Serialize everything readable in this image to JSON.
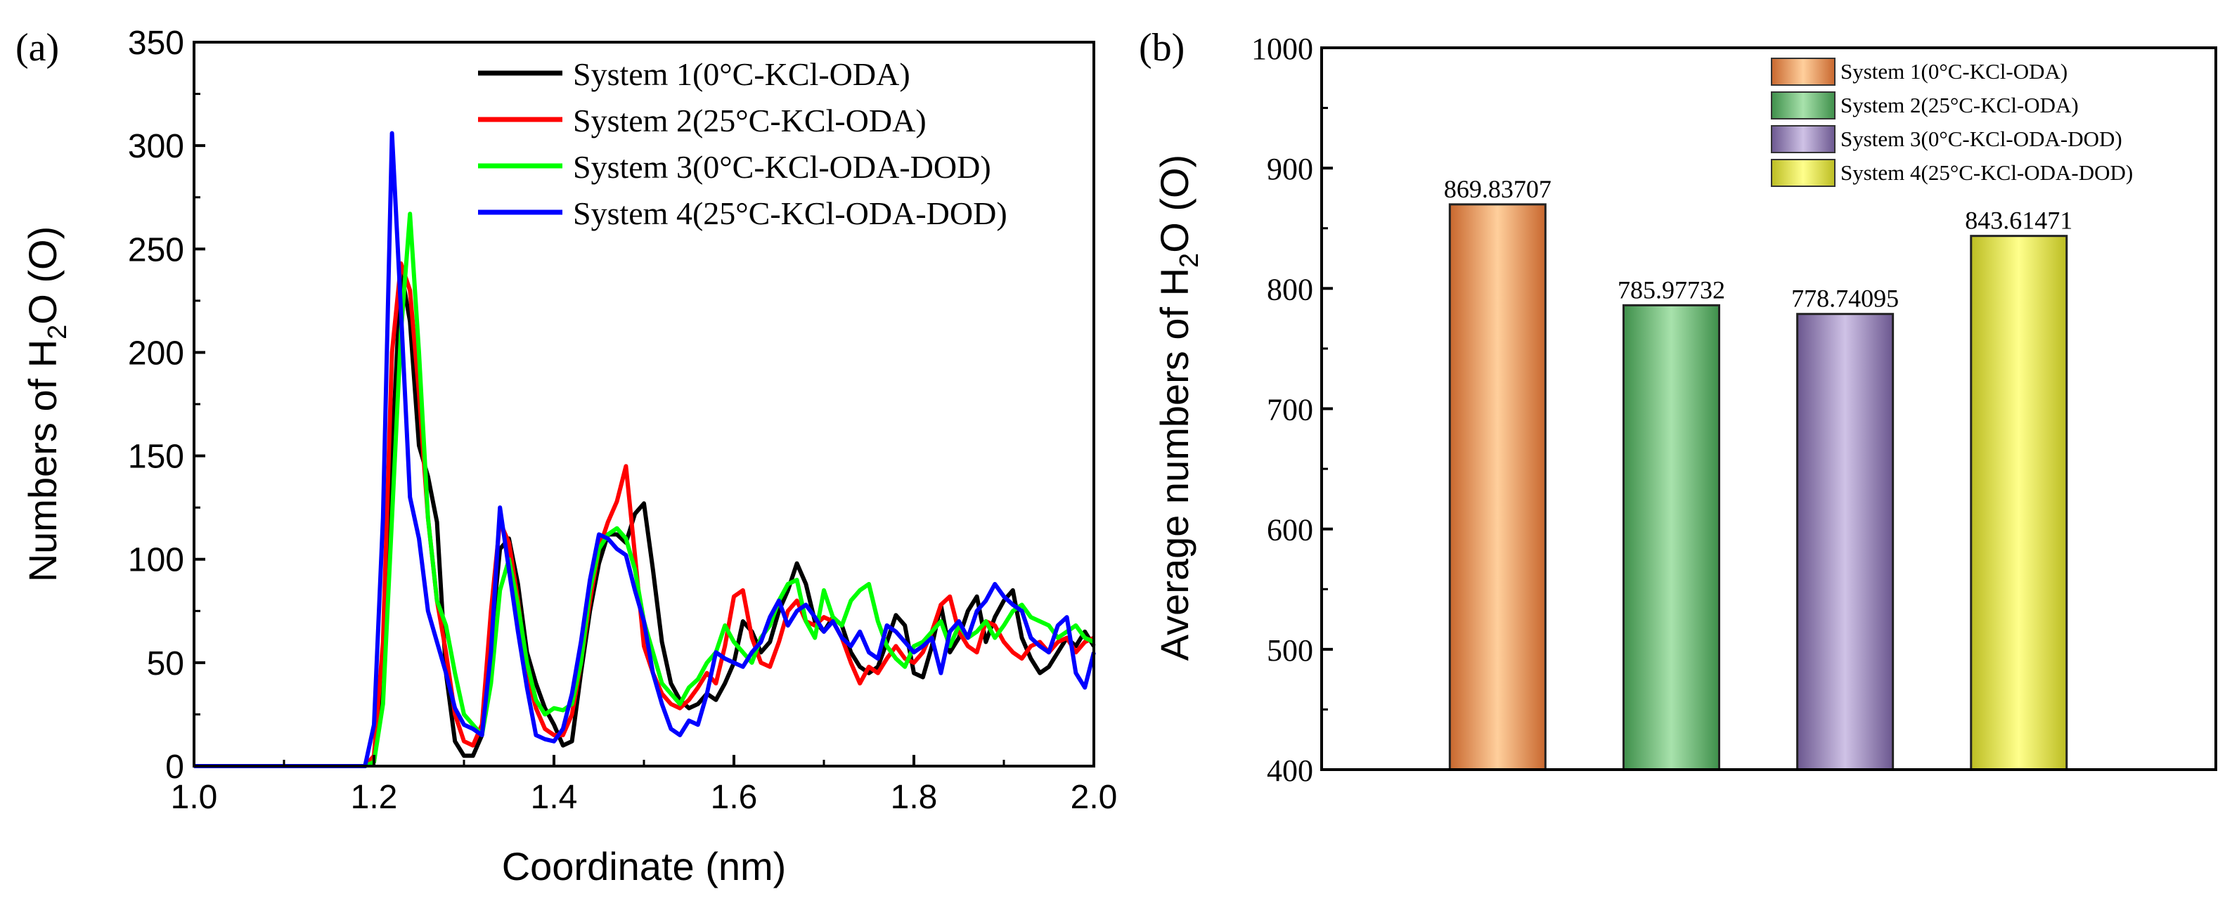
{
  "chart_data": [
    {
      "panel_label": "(a)",
      "type": "line",
      "xlabel": "Coordinate (nm)",
      "ylabel_main": "Numbers of H",
      "ylabel_sub": "2",
      "ylabel_end": "O (O)",
      "xlim": [
        1.0,
        2.0
      ],
      "ylim": [
        0,
        350
      ],
      "xticks": [
        1.0,
        1.2,
        1.4,
        1.6,
        1.8,
        2.0
      ],
      "xtick_labels": [
        "1.0",
        "1.2",
        "1.4",
        "1.6",
        "1.8",
        "2.0"
      ],
      "yticks": [
        0,
        50,
        100,
        150,
        200,
        250,
        300,
        350
      ],
      "ytick_labels": [
        "0",
        "50",
        "100",
        "150",
        "200",
        "250",
        "300",
        "350"
      ],
      "legend_position": "top-right",
      "series": [
        {
          "name": "System 1(0°C-KCl-ODA)",
          "color": "#000000",
          "x": [
            1.0,
            1.19,
            1.2,
            1.21,
            1.22,
            1.23,
            1.24,
            1.25,
            1.26,
            1.27,
            1.28,
            1.29,
            1.3,
            1.31,
            1.32,
            1.33,
            1.34,
            1.35,
            1.36,
            1.37,
            1.38,
            1.39,
            1.4,
            1.41,
            1.42,
            1.43,
            1.44,
            1.45,
            1.46,
            1.47,
            1.48,
            1.49,
            1.5,
            1.51,
            1.52,
            1.53,
            1.54,
            1.55,
            1.56,
            1.57,
            1.58,
            1.59,
            1.6,
            1.61,
            1.62,
            1.63,
            1.64,
            1.65,
            1.66,
            1.67,
            1.68,
            1.69,
            1.7,
            1.71,
            1.72,
            1.73,
            1.74,
            1.75,
            1.76,
            1.77,
            1.78,
            1.79,
            1.8,
            1.81,
            1.82,
            1.83,
            1.84,
            1.85,
            1.86,
            1.87,
            1.88,
            1.89,
            1.9,
            1.91,
            1.92,
            1.93,
            1.94,
            1.95,
            1.96,
            1.97,
            1.98,
            1.99,
            2.0
          ],
          "values": [
            0,
            0,
            2,
            35,
            150,
            240,
            215,
            155,
            140,
            118,
            45,
            12,
            5,
            5,
            15,
            60,
            105,
            110,
            88,
            55,
            40,
            28,
            20,
            10,
            12,
            45,
            75,
            98,
            112,
            112,
            108,
            122,
            127,
            95,
            60,
            40,
            32,
            28,
            30,
            35,
            32,
            40,
            50,
            70,
            65,
            55,
            60,
            75,
            85,
            98,
            88,
            70,
            65,
            72,
            68,
            55,
            48,
            45,
            48,
            60,
            73,
            68,
            45,
            43,
            58,
            78,
            55,
            62,
            75,
            82,
            60,
            72,
            80,
            85,
            62,
            52,
            45,
            48,
            55,
            62,
            58,
            65,
            58
          ]
        },
        {
          "name": "System 2(25°C-KCl-ODA)",
          "color": "#ff0000",
          "x": [
            1.0,
            1.19,
            1.2,
            1.21,
            1.22,
            1.23,
            1.24,
            1.25,
            1.26,
            1.27,
            1.28,
            1.29,
            1.3,
            1.31,
            1.32,
            1.33,
            1.34,
            1.35,
            1.36,
            1.37,
            1.38,
            1.39,
            1.4,
            1.41,
            1.42,
            1.43,
            1.44,
            1.45,
            1.46,
            1.47,
            1.48,
            1.49,
            1.5,
            1.51,
            1.52,
            1.53,
            1.54,
            1.55,
            1.56,
            1.57,
            1.58,
            1.59,
            1.6,
            1.61,
            1.62,
            1.63,
            1.64,
            1.65,
            1.66,
            1.67,
            1.68,
            1.69,
            1.7,
            1.71,
            1.72,
            1.73,
            1.74,
            1.75,
            1.76,
            1.77,
            1.78,
            1.79,
            1.8,
            1.81,
            1.82,
            1.83,
            1.84,
            1.85,
            1.86,
            1.87,
            1.88,
            1.89,
            1.9,
            1.91,
            1.92,
            1.93,
            1.94,
            1.95,
            1.96,
            1.97,
            1.98,
            1.99,
            2.0
          ],
          "values": [
            0,
            0,
            5,
            60,
            200,
            243,
            230,
            180,
            120,
            80,
            55,
            25,
            12,
            10,
            20,
            75,
            118,
            108,
            80,
            45,
            28,
            18,
            15,
            15,
            25,
            50,
            80,
            105,
            118,
            128,
            145,
            102,
            58,
            45,
            35,
            30,
            28,
            32,
            38,
            45,
            40,
            58,
            82,
            85,
            62,
            50,
            48,
            60,
            75,
            80,
            70,
            68,
            72,
            70,
            62,
            50,
            40,
            48,
            45,
            52,
            58,
            52,
            50,
            55,
            65,
            78,
            82,
            65,
            58,
            55,
            70,
            68,
            60,
            55,
            52,
            58,
            60,
            55,
            60,
            62,
            55,
            60,
            62
          ]
        },
        {
          "name": "System 3(0°C-KCl-ODA-DOD)",
          "color": "#00ff00",
          "x": [
            1.0,
            1.19,
            1.2,
            1.21,
            1.22,
            1.23,
            1.24,
            1.25,
            1.26,
            1.27,
            1.28,
            1.29,
            1.3,
            1.31,
            1.32,
            1.33,
            1.34,
            1.35,
            1.36,
            1.37,
            1.38,
            1.39,
            1.4,
            1.41,
            1.42,
            1.43,
            1.44,
            1.45,
            1.46,
            1.47,
            1.48,
            1.49,
            1.5,
            1.51,
            1.52,
            1.53,
            1.54,
            1.55,
            1.56,
            1.57,
            1.58,
            1.59,
            1.6,
            1.61,
            1.62,
            1.63,
            1.64,
            1.65,
            1.66,
            1.67,
            1.68,
            1.69,
            1.7,
            1.71,
            1.72,
            1.73,
            1.74,
            1.75,
            1.76,
            1.77,
            1.78,
            1.79,
            1.8,
            1.81,
            1.82,
            1.83,
            1.84,
            1.85,
            1.86,
            1.87,
            1.88,
            1.89,
            1.9,
            1.91,
            1.92,
            1.93,
            1.94,
            1.95,
            1.96,
            1.97,
            1.98,
            1.99,
            2.0
          ],
          "values": [
            0,
            0,
            2,
            30,
            120,
            210,
            267,
            200,
            120,
            80,
            68,
            45,
            25,
            20,
            15,
            40,
            85,
            100,
            78,
            50,
            32,
            25,
            28,
            27,
            30,
            50,
            85,
            105,
            112,
            115,
            110,
            95,
            70,
            55,
            40,
            35,
            30,
            38,
            42,
            50,
            55,
            68,
            60,
            55,
            50,
            62,
            68,
            80,
            88,
            90,
            70,
            62,
            85,
            72,
            68,
            80,
            85,
            88,
            70,
            58,
            52,
            48,
            58,
            60,
            65,
            70,
            58,
            68,
            62,
            65,
            70,
            62,
            68,
            75,
            78,
            72,
            70,
            68,
            62,
            65,
            68,
            62,
            60
          ]
        },
        {
          "name": "System 4(25°C-KCl-ODA-DOD)",
          "color": "#0000ff",
          "x": [
            1.0,
            1.19,
            1.2,
            1.21,
            1.22,
            1.23,
            1.24,
            1.25,
            1.26,
            1.27,
            1.28,
            1.29,
            1.3,
            1.31,
            1.32,
            1.33,
            1.34,
            1.35,
            1.36,
            1.37,
            1.38,
            1.39,
            1.4,
            1.41,
            1.42,
            1.43,
            1.44,
            1.45,
            1.46,
            1.47,
            1.48,
            1.49,
            1.5,
            1.51,
            1.52,
            1.53,
            1.54,
            1.55,
            1.56,
            1.57,
            1.58,
            1.59,
            1.6,
            1.61,
            1.62,
            1.63,
            1.64,
            1.65,
            1.66,
            1.67,
            1.68,
            1.69,
            1.7,
            1.71,
            1.72,
            1.73,
            1.74,
            1.75,
            1.76,
            1.77,
            1.78,
            1.79,
            1.8,
            1.81,
            1.82,
            1.83,
            1.84,
            1.85,
            1.86,
            1.87,
            1.88,
            1.89,
            1.9,
            1.91,
            1.92,
            1.93,
            1.94,
            1.95,
            1.96,
            1.97,
            1.98,
            1.99,
            2.0
          ],
          "values": [
            0,
            0,
            20,
            120,
            306,
            220,
            130,
            110,
            75,
            60,
            45,
            28,
            20,
            18,
            15,
            55,
            125,
            95,
            65,
            38,
            15,
            13,
            12,
            18,
            35,
            60,
            90,
            112,
            110,
            105,
            102,
            85,
            70,
            45,
            30,
            18,
            15,
            22,
            20,
            35,
            55,
            52,
            50,
            48,
            55,
            60,
            72,
            80,
            68,
            75,
            78,
            72,
            65,
            70,
            62,
            58,
            65,
            55,
            52,
            68,
            65,
            60,
            55,
            58,
            62,
            45,
            65,
            70,
            62,
            75,
            80,
            88,
            82,
            78,
            75,
            62,
            58,
            55,
            68,
            72,
            45,
            38,
            55
          ]
        }
      ]
    },
    {
      "panel_label": "(b)",
      "type": "bar",
      "ylabel_main": "Average numbers of H",
      "ylabel_sub": "2",
      "ylabel_end": "O (O)",
      "xlabel": "",
      "ylim": [
        400,
        1000
      ],
      "yticks": [
        400,
        500,
        600,
        700,
        800,
        900,
        1000
      ],
      "ytick_labels": [
        "400",
        "500",
        "600",
        "700",
        "800",
        "900",
        "1000"
      ],
      "categories": [
        "System 1(0°C-KCl-ODA)",
        "System 2(25°C-KCl-ODA)",
        "System 3(0°C-KCl-ODA-DOD)",
        "System 4(25°C-KCl-ODA-DOD)"
      ],
      "values": [
        869.83707,
        785.97732,
        778.74095,
        843.61471
      ],
      "value_labels": [
        "869.83707",
        "785.97732",
        "778.74095",
        "843.61471"
      ],
      "bar_colors": [
        {
          "dark": "#c8672e",
          "light": "#ffcf9c"
        },
        {
          "dark": "#3e8f4a",
          "light": "#a8e2ac"
        },
        {
          "dark": "#6b578f",
          "light": "#cfc2e6"
        },
        {
          "dark": "#bcbd22",
          "light": "#ffff8c"
        }
      ],
      "legend_position": "top-right"
    }
  ]
}
